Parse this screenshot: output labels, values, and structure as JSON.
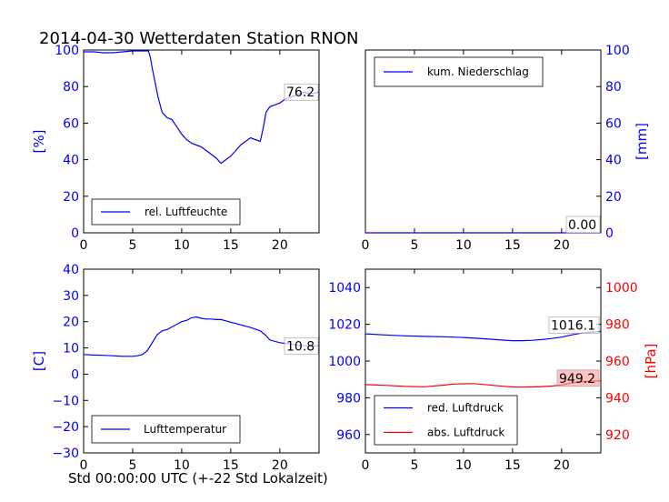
{
  "title": "2014-04-30 Wetterdaten Station RNON",
  "xlabel": "Std 00:00:00 UTC (+-22 Std Lokalzeit)",
  "colors": {
    "primary": "#0000ff",
    "secondary": "#ff0000"
  },
  "chart_data": [
    {
      "type": "line",
      "ylabel": "[%]",
      "xlim": [
        0,
        24
      ],
      "ylim": [
        0,
        100
      ],
      "x_ticks": [
        "0",
        "5",
        "10",
        "15",
        "20"
      ],
      "y_ticks": [
        "0",
        "20",
        "40",
        "60",
        "80",
        "100"
      ],
      "legend": "lower-left",
      "value_label": "76.2",
      "series": [
        {
          "name": "rel. Luftfeuchte",
          "color": "#0000ff",
          "x": [
            0,
            1,
            2,
            3,
            4,
            5,
            6,
            6.6,
            6.8,
            7,
            7.3,
            7.6,
            8,
            8.5,
            9,
            9.5,
            10,
            10.5,
            11,
            11.5,
            12,
            12.5,
            13,
            13.5,
            14,
            14.5,
            15,
            15.5,
            16,
            16.5,
            17,
            17.5,
            18,
            18.3,
            18.6,
            19,
            19.5,
            20,
            20.5,
            21,
            21.5,
            22,
            22.5,
            23,
            24
          ],
          "y": [
            99,
            99,
            98.5,
            98.5,
            99,
            99.5,
            99.5,
            99.5,
            96,
            90,
            82,
            74,
            66,
            63,
            62,
            58,
            54,
            51,
            49,
            48,
            47,
            45,
            43,
            41,
            38,
            40,
            42,
            45,
            48,
            50,
            52,
            51,
            50,
            57,
            66,
            69,
            70,
            71,
            73,
            74,
            75,
            76,
            77,
            76,
            77
          ]
        }
      ]
    },
    {
      "type": "line",
      "ylabel": "[mm]",
      "xlim": [
        0,
        24
      ],
      "ylim": [
        0,
        100
      ],
      "x_ticks": [
        "0",
        "5",
        "10",
        "15",
        "20"
      ],
      "y_ticks": [
        "0",
        "20",
        "40",
        "60",
        "80",
        "100"
      ],
      "legend": "upper-left",
      "value_label": "0.00",
      "series": [
        {
          "name": "kum. Niederschlag",
          "color": "#0000ff",
          "x": [
            0,
            24
          ],
          "y": [
            0,
            0
          ]
        }
      ]
    },
    {
      "type": "line",
      "ylabel": "[C]",
      "xlim": [
        0,
        24
      ],
      "ylim": [
        -30,
        40
      ],
      "x_ticks": [
        "0",
        "5",
        "10",
        "15",
        "20"
      ],
      "y_ticks": [
        "−30",
        "−20",
        "−10",
        "0",
        "10",
        "20",
        "30",
        "40"
      ],
      "legend": "lower-left",
      "value_label": "10.8",
      "series": [
        {
          "name": "Lufttemperatur",
          "color": "#0000ff",
          "x": [
            0,
            1,
            2,
            3,
            4,
            5,
            5.5,
            6,
            6.5,
            7,
            7.5,
            8,
            8.5,
            9,
            9.5,
            10,
            10.5,
            11,
            11.5,
            12,
            12.5,
            13,
            13.5,
            14,
            14.5,
            15,
            15.5,
            16,
            17,
            18,
            18.5,
            19,
            20,
            21,
            22,
            23,
            24
          ],
          "y": [
            7.5,
            7.3,
            7.2,
            7,
            6.8,
            6.8,
            7,
            7.5,
            9,
            12,
            15,
            16.5,
            17,
            18,
            19,
            20,
            20.5,
            21.5,
            21.8,
            21.3,
            21,
            21,
            20.8,
            20.8,
            20.3,
            19.8,
            19.3,
            18.8,
            17.8,
            16.5,
            15,
            13,
            12,
            11.5,
            11,
            10.8,
            10.8
          ]
        }
      ]
    },
    {
      "type": "line",
      "ylabel": "",
      "y2label": "[hPa]",
      "xlim": [
        0,
        24
      ],
      "ylim": [
        950,
        1050
      ],
      "y2lim": [
        910,
        1010
      ],
      "x_ticks": [
        "0",
        "5",
        "10",
        "15",
        "20"
      ],
      "y_ticks": [
        "960",
        "980",
        "1000",
        "1020",
        "1040"
      ],
      "y2_ticks": [
        "920",
        "940",
        "960",
        "980",
        "1000"
      ],
      "legend": "lower-left",
      "value_labels": [
        "1016.1",
        "949.2"
      ],
      "series": [
        {
          "name": "red. Luftdruck",
          "color": "#0000ff",
          "axis": "left",
          "x": [
            0,
            2,
            4,
            6,
            8,
            10,
            12,
            14,
            15,
            16,
            17,
            18,
            19,
            20,
            21,
            22,
            23,
            24
          ],
          "y": [
            1014.8,
            1014.2,
            1013.7,
            1013.4,
            1013.2,
            1012.8,
            1012.2,
            1011.4,
            1011.1,
            1011.1,
            1011.3,
            1011.7,
            1012.3,
            1013.0,
            1014.2,
            1015.2,
            1015.8,
            1016.1
          ]
        },
        {
          "name": "abs. Luftdruck",
          "color": "#ff0000",
          "axis": "right",
          "x": [
            0,
            2,
            4,
            6,
            8,
            9,
            10,
            11,
            12,
            13,
            14,
            15,
            16,
            17,
            18,
            19,
            20,
            21,
            22,
            23,
            24
          ],
          "y": [
            947.2,
            946.8,
            946.2,
            946.0,
            946.9,
            947.5,
            947.6,
            947.7,
            947.3,
            946.8,
            946.3,
            945.9,
            945.8,
            945.9,
            946.1,
            946.4,
            947.0,
            948.0,
            948.8,
            949.0,
            949.2
          ]
        }
      ]
    }
  ]
}
